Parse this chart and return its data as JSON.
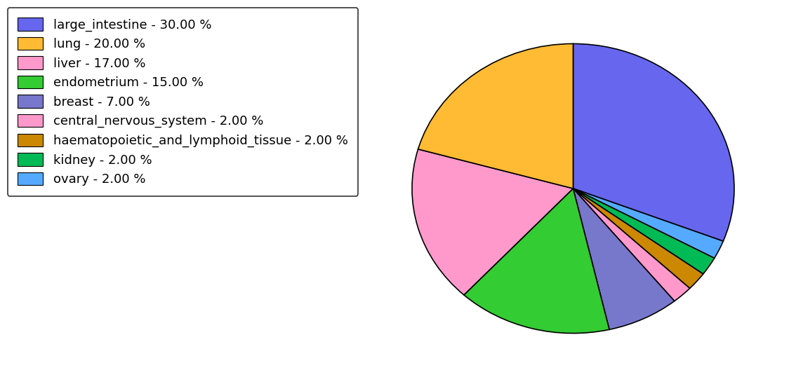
{
  "labels": [
    "large_intestine - 30.00 %",
    "lung - 20.00 %",
    "liver - 17.00 %",
    "endometrium - 15.00 %",
    "breast - 7.00 %",
    "central_nervous_system - 2.00 %",
    "haematopoietic_and_lymphoid_tissue - 2.00 %",
    "kidney - 2.00 %",
    "ovary - 2.00 %"
  ],
  "slice_order": [
    "large_intestine",
    "ovary",
    "kidney",
    "haematopoietic_and_lymphoid_tissue",
    "central_nervous_system",
    "breast",
    "endometrium",
    "liver",
    "lung"
  ],
  "values_ordered": [
    30,
    2,
    2,
    2,
    2,
    7,
    15,
    17,
    20
  ],
  "colors_ordered": [
    "#6666ee",
    "#55aaff",
    "#00bb55",
    "#cc8800",
    "#ff99cc",
    "#7777cc",
    "#33cc33",
    "#ff99cc",
    "#ffbb33"
  ],
  "legend_colors": [
    "#6666ee",
    "#ffbb33",
    "#ff99cc",
    "#33cc33",
    "#7777cc",
    "#ff99cc",
    "#cc8800",
    "#00bb55",
    "#55aaff"
  ],
  "startangle": 90,
  "legend_fontsize": 13,
  "figsize": [
    11.34,
    5.38
  ]
}
